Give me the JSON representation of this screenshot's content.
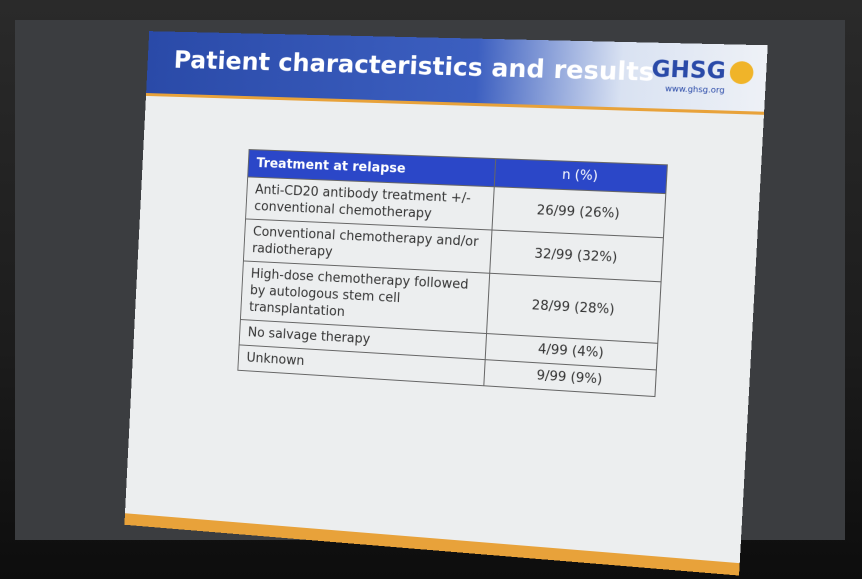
{
  "slide": {
    "title": "Patient characteristics and results",
    "logo": "GHSG",
    "url": "www.ghsg.org"
  },
  "table": {
    "header": [
      "Treatment at relapse",
      "n (%)"
    ],
    "rows": [
      [
        "Anti-CD20 antibody treatment +/- conventional chemotherapy",
        "26/99 (26%)"
      ],
      [
        "Conventional chemotherapy and/or radiotherapy",
        "32/99 (32%)"
      ],
      [
        "High-dose chemotherapy followed by autologous stem cell transplantation",
        "28/99 (28%)"
      ],
      [
        "No salvage therapy",
        "4/99 (4%)"
      ],
      [
        "Unknown",
        "9/99 (9%)"
      ]
    ]
  }
}
